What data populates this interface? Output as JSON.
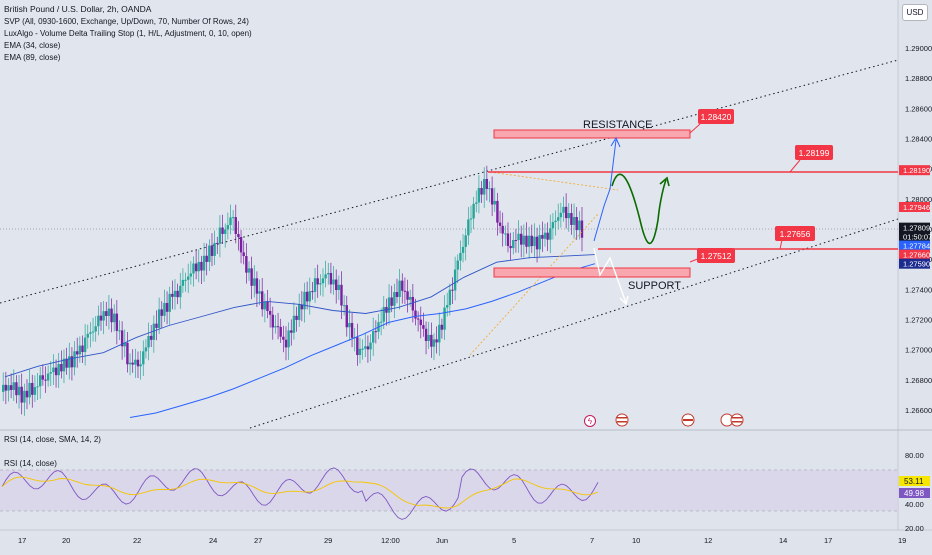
{
  "header": {
    "symbol_title": "British Pound / U.S. Dollar, 2h, OANDA",
    "indicators": [
      "SVP (All, 0930-1600, Exchange, Up/Down, 70, Number Of Rows, 24)",
      "LuxAlgo - Volume Delta Trailing Stop (1, H/L, Adjustment, 0, 10, open)",
      "EMA (34, close)",
      "EMA (89, close)"
    ],
    "currency_button": "USD"
  },
  "price_axis": {
    "ticks": [
      "1.29000",
      "1.28800",
      "1.28600",
      "1.28400",
      "1.28200",
      "1.28000",
      "1.27800",
      "1.27600",
      "1.27400",
      "1.27200",
      "1.27000",
      "1.26800",
      "1.26600"
    ],
    "ylim": [
      1.2652,
      1.2912
    ],
    "labels": [
      {
        "text": "1.28190",
        "price": 1.2819,
        "color": "#f23645",
        "text_color": "#ffffff"
      },
      {
        "text": "1.27946",
        "price": 1.27946,
        "color": "#f23645",
        "text_color": "#ffffff"
      },
      {
        "text": "1.27809",
        "price": 1.27809,
        "color": "#131722",
        "text_color": "#ffffff"
      },
      {
        "text": "01:50:07",
        "price": 1.2775,
        "color": "#131722",
        "text_color": "#ffffff"
      },
      {
        "text": "1.27784",
        "price": 1.2769,
        "color": "#2962ff",
        "text_color": "#ffffff"
      },
      {
        "text": "1.27660",
        "price": 1.2763,
        "color": "#f23645",
        "text_color": "#ffffff"
      },
      {
        "text": "1.27590",
        "price": 1.2757,
        "color": "#1c2b8f",
        "text_color": "#ffffff"
      }
    ]
  },
  "time_axis": {
    "labels": [
      "17",
      "20",
      "22",
      "24",
      "27",
      "29",
      "12:00",
      "Jun",
      "5",
      "7",
      "10",
      "12",
      "14",
      "17",
      "19"
    ]
  },
  "annotations": {
    "resistance": "RESISTANCE",
    "support": "SUPPORT",
    "callouts": [
      "1.28420",
      "1.28199",
      "1.27512",
      "1.27656"
    ]
  },
  "rsi_panel": {
    "title": "RSI (14, close, SMA, 14, 2)",
    "sub_title": "RSI (14, close)",
    "ticks": [
      "80.00",
      "40.00",
      "20.00"
    ],
    "value_labels": [
      {
        "text": "53.11",
        "color": "#f7e600",
        "text_color": "#131722"
      },
      {
        "text": "49.98",
        "color": "#7e57c2",
        "text_color": "#ffffff"
      }
    ]
  },
  "chart_data": {
    "type": "line",
    "title": "British Pound / U.S. Dollar, 2h, OANDA",
    "xlabel": "",
    "ylabel": "",
    "ylim": [
      1.2652,
      1.2912
    ],
    "x_tick_labels": [
      "17",
      "20",
      "22",
      "24",
      "27",
      "29",
      "12:00",
      "Jun",
      "5",
      "7",
      "10",
      "12",
      "14",
      "17",
      "19"
    ],
    "series": [
      {
        "name": "EMA (89, close)",
        "values": [
          1.2655,
          1.2658,
          1.2663,
          1.2668,
          1.2674,
          1.2681,
          1.2688,
          1.2696,
          1.2703,
          1.271,
          1.2718,
          1.2722,
          1.2724,
          1.2727,
          1.2732,
          1.2738,
          1.2745,
          1.2752,
          1.2757
        ]
      },
      {
        "name": "EMA (34, close)",
        "values": [
          1.2682,
          1.2689,
          1.2694,
          1.2698,
          1.2708,
          1.2716,
          1.2722,
          1.2728,
          1.2732,
          1.273,
          1.2726,
          1.2724,
          1.2728,
          1.2735,
          1.2748,
          1.2758,
          1.2761,
          1.2762,
          1.2763
        ]
      }
    ],
    "levels": [
      {
        "label": "1.28420",
        "value": 1.2842
      },
      {
        "label": "1.28199",
        "value": 1.28199
      },
      {
        "label": "1.27656",
        "value": 1.27656
      },
      {
        "label": "1.27512",
        "value": 1.27512
      }
    ],
    "grid": false,
    "legend": "top-left"
  }
}
